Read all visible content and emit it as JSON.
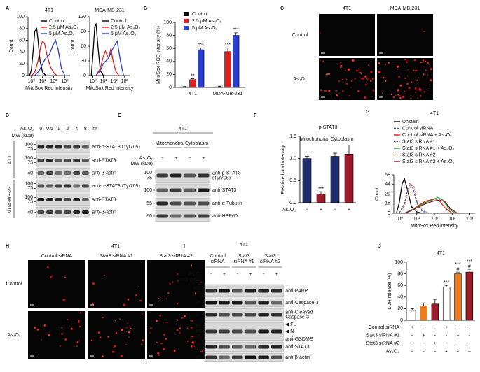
{
  "panel_labels": [
    "A",
    "B",
    "C",
    "D",
    "E",
    "F",
    "G",
    "H",
    "I",
    "J"
  ],
  "chart_data": [
    {
      "type": "line",
      "title": "4T1",
      "xlabel": "MitoSox Red intensity",
      "ylabel": "Count",
      "log_x": true,
      "xlim": [
        0.5,
        3000
      ],
      "xticks": [
        {
          "value": 1,
          "label": "10⁰"
        },
        {
          "value": 10,
          "label": "10¹"
        },
        {
          "value": 100,
          "label": "10²"
        },
        {
          "value": 1000,
          "label": "10³"
        }
      ],
      "ylim": [
        0,
        100
      ],
      "yticks": [
        0,
        20,
        40,
        60,
        80,
        100
      ],
      "series": [
        {
          "name": "Control",
          "color": "#000000",
          "x": [
            0.7,
            1,
            1.5,
            2,
            3,
            4,
            6,
            10,
            20
          ],
          "values": [
            0,
            10,
            45,
            75,
            80,
            60,
            25,
            6,
            0
          ]
        },
        {
          "name": "2.5 μM As₄O₆",
          "color": "#e02020",
          "x": [
            1,
            2,
            4,
            7,
            10,
            15,
            25,
            50,
            100,
            200
          ],
          "values": [
            0,
            5,
            25,
            50,
            58,
            55,
            35,
            15,
            5,
            0
          ]
        },
        {
          "name": "5 μM As₄O₆",
          "color": "#2b3fd1",
          "x": [
            2,
            5,
            10,
            20,
            40,
            80,
            150,
            250,
            500,
            1000
          ],
          "values": [
            0,
            8,
            20,
            30,
            35,
            50,
            60,
            45,
            12,
            0
          ]
        }
      ]
    },
    {
      "type": "line",
      "title": "MDA-MB-231",
      "xlabel": "MitoSox Red intensity",
      "ylabel": "Count",
      "log_x": true,
      "xlim": [
        0.5,
        3000
      ],
      "xticks": [
        {
          "value": 1,
          "label": "10⁰"
        },
        {
          "value": 10,
          "label": "10¹"
        },
        {
          "value": 100,
          "label": "10²"
        },
        {
          "value": 1000,
          "label": "10³"
        }
      ],
      "ylim": [
        0,
        120
      ],
      "yticks": [
        0,
        30,
        60,
        90,
        120
      ],
      "series": [
        {
          "name": "Control",
          "color": "#000000",
          "x": [
            0.7,
            1,
            1.5,
            2,
            3,
            5,
            10
          ],
          "values": [
            0,
            40,
            100,
            105,
            60,
            10,
            0
          ]
        },
        {
          "name": "2.5 μM As₄O₆",
          "color": "#e02020",
          "x": [
            2,
            5,
            10,
            15,
            30,
            50,
            80,
            150,
            300
          ],
          "values": [
            0,
            15,
            40,
            50,
            35,
            55,
            30,
            8,
            0
          ]
        },
        {
          "name": "5 μM As₄O₆",
          "color": "#2b3fd1",
          "x": [
            2,
            5,
            10,
            30,
            60,
            100,
            200,
            400,
            800
          ],
          "values": [
            0,
            10,
            25,
            35,
            50,
            60,
            70,
            30,
            0
          ]
        }
      ]
    },
    {
      "type": "bar",
      "ylabel": "MitoSox ROS intensity (%)",
      "categories": [
        "4T1",
        "MDA-MB-231"
      ],
      "ylim": [
        0,
        100
      ],
      "yticks": [
        0,
        20,
        40,
        60,
        80,
        100
      ],
      "series": [
        {
          "name": "Control",
          "color": "#000000",
          "values": [
            1,
            1
          ],
          "errors": [
            0.5,
            1
          ],
          "labels": [
            null,
            null
          ]
        },
        {
          "name": "2.5 μM As₄O₆",
          "color": "#e02020",
          "values": [
            12,
            55
          ],
          "errors": [
            1.5,
            6
          ],
          "labels": [
            "**",
            "***"
          ]
        },
        {
          "name": "5 μM As₄O₆",
          "color": "#2b3fd1",
          "values": [
            58,
            80
          ],
          "errors": [
            3,
            4
          ],
          "labels": [
            "***",
            "***"
          ]
        }
      ]
    },
    {
      "type": "bar",
      "title": "p-STAT3",
      "ylabel": "Relative band intensity",
      "xlabel": "As₄O₆",
      "categories": [
        "-",
        "+",
        "-",
        "+"
      ],
      "groups": [
        "Mitochondria",
        "Cytoplasm"
      ],
      "values": [
        1.0,
        0.2,
        1.05,
        1.1
      ],
      "errors": [
        0.05,
        0.05,
        0.07,
        0.2
      ],
      "labels": [
        null,
        "***",
        null,
        null
      ],
      "colors": [
        "#1f2d6e",
        "#9e1b2a",
        "#1f2d6e",
        "#9e1b2a"
      ],
      "ylim": [
        0,
        1.5
      ],
      "yticks": [
        {
          "value": 0,
          "label": "0.0"
        },
        {
          "value": 0.5,
          "label": "0.5"
        },
        {
          "value": 1,
          "label": "1.0"
        },
        {
          "value": 1.5,
          "label": "1.5"
        }
      ]
    },
    {
      "type": "line",
      "title": "4T1",
      "xlabel": "MitoSox Red intensity",
      "ylabel": "Count",
      "log_x": true,
      "xlim": [
        0.5,
        20000
      ],
      "xticks": [
        {
          "value": 1,
          "label": "10⁰"
        },
        {
          "value": 10,
          "label": "10¹"
        },
        {
          "value": 100,
          "label": "10²"
        },
        {
          "value": 1000,
          "label": "10³"
        },
        {
          "value": 10000,
          "label": "10⁴"
        }
      ],
      "ylim": [
        0,
        58
      ],
      "yticks": [
        0,
        15,
        29,
        44,
        58
      ],
      "series": [
        {
          "name": "Unstain",
          "color": "#000000",
          "style": "solid",
          "x": [
            0.7,
            1,
            1.5,
            2,
            3,
            5,
            10,
            20
          ],
          "values": [
            0,
            15,
            45,
            52,
            35,
            10,
            2,
            0
          ]
        },
        {
          "name": "Control siRNA",
          "color": "#3d5aa8",
          "style": "dashed",
          "x": [
            1,
            2,
            3,
            4,
            6,
            10,
            20,
            50
          ],
          "values": [
            0,
            15,
            35,
            44,
            38,
            15,
            3,
            0
          ]
        },
        {
          "name": "Control siRNA + As₄O₆",
          "color": "#e02020",
          "style": "solid",
          "x": [
            2,
            5,
            10,
            30,
            60,
            100,
            200,
            400,
            1000
          ],
          "values": [
            0,
            5,
            10,
            18,
            20,
            22,
            18,
            8,
            0
          ]
        },
        {
          "name": "Stat3 siRNA #1",
          "color": "#7b4fa0",
          "style": "dotted",
          "x": [
            1,
            2,
            3,
            4,
            6,
            10,
            20,
            50
          ],
          "values": [
            0,
            12,
            33,
            45,
            40,
            18,
            4,
            0
          ]
        },
        {
          "name": "Stat3 siRNA #1 + As₄O₆",
          "color": "#2e9e3e",
          "style": "solid",
          "x": [
            2,
            5,
            10,
            30,
            80,
            150,
            300,
            600,
            1500
          ],
          "values": [
            0,
            5,
            9,
            16,
            20,
            24,
            20,
            8,
            0
          ]
        },
        {
          "name": "Stat3 siRNA #2",
          "color": "#f08a24",
          "style": "dotted",
          "x": [
            1,
            2,
            3,
            5,
            7,
            10,
            20,
            50
          ],
          "values": [
            0,
            10,
            30,
            44,
            40,
            20,
            5,
            0
          ]
        },
        {
          "name": "Stat3 siRNA #2 + As₄O₆",
          "color": "#8b1a2b",
          "style": "solid",
          "x": [
            2,
            5,
            10,
            30,
            80,
            200,
            400,
            800,
            2000
          ],
          "values": [
            0,
            4,
            8,
            14,
            18,
            20,
            17,
            7,
            0
          ]
        }
      ]
    },
    {
      "type": "bar",
      "title": "4T1",
      "ylabel": "LDH release (%)",
      "values": [
        17,
        25,
        28,
        57,
        80,
        83
      ],
      "errors": [
        3,
        5,
        8,
        3,
        3,
        5
      ],
      "labels": [
        null,
        null,
        null,
        [
          "***"
        ],
        [
          "***",
          "#"
        ],
        [
          "***",
          "#"
        ]
      ],
      "colors": [
        "#ffffff",
        "#f07c1e",
        "#9e1b2a",
        "#ffffff",
        "#f07c1e",
        "#9e1b2a"
      ],
      "ylim": [
        0,
        100
      ],
      "yticks": [
        0,
        20,
        40,
        60,
        80,
        100
      ],
      "conditions": [
        {
          "label": "Control siRNA",
          "marks": [
            "+",
            "-",
            "-",
            "+",
            "-",
            "-"
          ]
        },
        {
          "label": "Stat3 siRNA #1",
          "marks": [
            "-",
            "+",
            "-",
            "-",
            "+",
            "-"
          ]
        },
        {
          "label": "Stat3 siRNA #2",
          "marks": [
            "-",
            "-",
            "+",
            "-",
            "-",
            "+"
          ]
        },
        {
          "label": "As₄O₆",
          "marks": [
            "-",
            "-",
            "-",
            "+",
            "+",
            "+"
          ]
        }
      ]
    }
  ],
  "C": {
    "columns": [
      "4T1",
      "MDA-MB-231"
    ],
    "rows": [
      "Control",
      "As₄O₆"
    ]
  },
  "D": {
    "treatment": "As₄O₆",
    "lanes": [
      "0",
      "0.5",
      "1",
      "2",
      "4",
      "8"
    ],
    "unit": "hr",
    "mw_label": "MW (kDa)",
    "groups": [
      "4T1",
      "MDA-MB-231"
    ],
    "blots": [
      {
        "mw": [
          "100",
          "75"
        ],
        "label": [
          "anti-p-STAT3 (Tyr705)"
        ]
      },
      {
        "mw": [
          "100",
          "75"
        ],
        "label": [
          "anti-STAT3"
        ]
      },
      {
        "mw": [
          "40"
        ],
        "label": [
          "anti-β-actin"
        ]
      },
      {
        "mw": [
          "100",
          "75"
        ],
        "label": [
          "anti-p-STAT3 (Tyr705)"
        ]
      },
      {
        "mw": [
          "100",
          "75"
        ],
        "label": [
          "anti-STAT3"
        ]
      },
      {
        "mw": [
          "40"
        ],
        "label": [
          "anti-β-actin"
        ]
      }
    ]
  },
  "E": {
    "title": "4T1",
    "fractions": [
      "Mitochondria",
      "Cytoplasm"
    ],
    "treatment": "As₄O₆",
    "lanes": [
      "-",
      "+",
      "-",
      "+"
    ],
    "mw_label": "MW (kDa)",
    "blots": [
      {
        "mw": [
          "100",
          "75"
        ],
        "label": [
          "anti-p-STAT3",
          "(Tyr705)"
        ]
      },
      {
        "mw": [
          "100"
        ],
        "label": [
          "anti-STAT3"
        ]
      },
      {
        "mw": [
          "55"
        ],
        "label": [
          "anti-α-Tubulin"
        ]
      },
      {
        "mw": [
          "60"
        ],
        "label": [
          "anti-HSP60"
        ]
      }
    ]
  },
  "H": {
    "title": "4T1",
    "columns": [
      "Control siRNA",
      "Stat3 siRNA #1",
      "Stat3 siRNA #2"
    ],
    "rows": [
      "Control",
      "As₄O₆"
    ]
  },
  "I": {
    "title": "4T1",
    "columns": [
      [
        "Control",
        "siRNA"
      ],
      [
        "Stat3",
        "siRNA #1"
      ],
      [
        "Stat3",
        "siRNA #2"
      ]
    ],
    "treatment": "As₄O₆",
    "lanes": [
      "-",
      "+",
      "-",
      "+",
      "-",
      "+"
    ],
    "mw_label": "MW (kDa)",
    "blots": [
      {
        "mw": [
          "100",
          "75"
        ],
        "label": [
          "anti-PARP"
        ]
      },
      {
        "mw": [
          "35"
        ],
        "label": [
          "anti-Caspase-3"
        ]
      },
      {
        "mw": [
          "17"
        ],
        "label": [
          "anti-Cleaved",
          "Caspase-3"
        ]
      },
      {
        "mw": [
          "55",
          "45",
          "35"
        ],
        "label": [
          "anti-GSDME"
        ],
        "markers": [
          "FL",
          "N"
        ]
      },
      {
        "mw": [
          "100",
          "75"
        ],
        "label": [
          "anti-STAT3"
        ]
      },
      {
        "mw": [
          "40"
        ],
        "label": [
          "anti-β-actin"
        ]
      }
    ]
  }
}
